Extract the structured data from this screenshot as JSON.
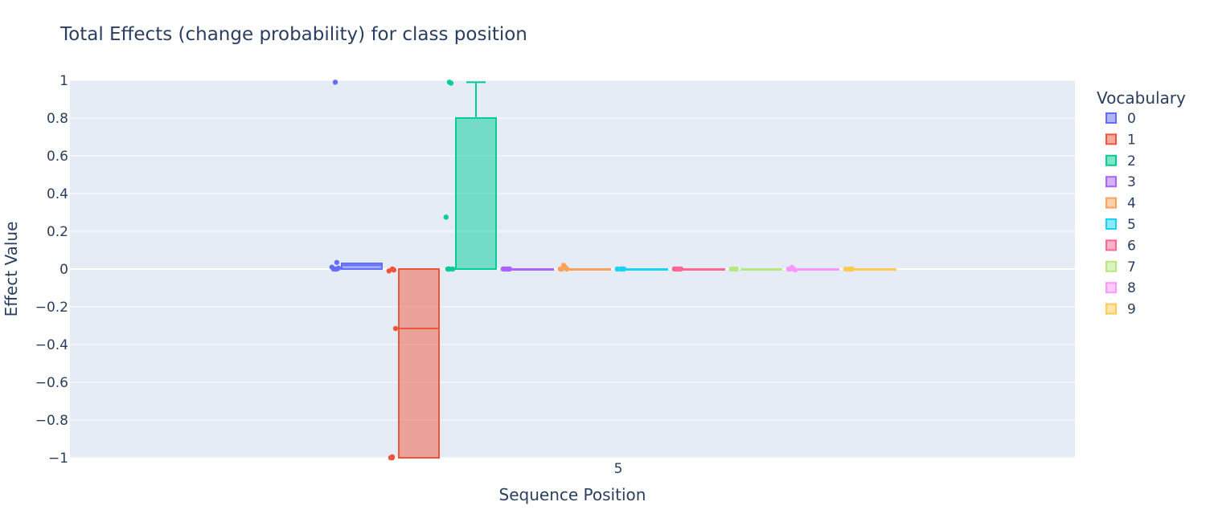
{
  "chart_data": {
    "type": "box",
    "title": "Total Effects (change probability) for class position",
    "xlabel": "Sequence Position",
    "ylabel": "Effect Value",
    "x_category": "5",
    "ylim": [
      -1,
      1
    ],
    "yticks": [
      -1,
      -0.8,
      -0.6,
      -0.4,
      -0.2,
      0,
      0.2,
      0.4,
      0.6,
      0.8,
      1
    ],
    "ytick_labels": [
      "−1",
      "−0.8",
      "−0.6",
      "−0.4",
      "−0.2",
      "0",
      "0.2",
      "0.4",
      "0.6",
      "0.8",
      "1"
    ],
    "grid": true,
    "legend_title": "Vocabulary",
    "legend_position": "right",
    "series": [
      {
        "name": "0",
        "color": "#636efa",
        "q1": 0,
        "median": 0.02,
        "q3": 0.03,
        "lowerfence": 0,
        "upperfence": 0.03,
        "points": [
          0.99,
          0.035,
          0.01,
          0.005,
          0,
          0,
          0,
          0
        ]
      },
      {
        "name": "1",
        "color": "#EF553B",
        "q1": -1,
        "median": -0.315,
        "q3": 0,
        "lowerfence": -1,
        "upperfence": 0,
        "points": [
          0,
          -0.005,
          -0.01,
          -0.315,
          -1,
          -0.995,
          -1
        ]
      },
      {
        "name": "2",
        "color": "#00cc96",
        "q1": 0,
        "median": 0,
        "q3": 0.8,
        "lowerfence": 0,
        "upperfence": 0.99,
        "points": [
          0.99,
          0.985,
          0.275,
          0,
          0,
          0,
          0
        ]
      },
      {
        "name": "3",
        "color": "#ab63fa",
        "q1": 0,
        "median": 0,
        "q3": 0,
        "lowerfence": 0,
        "upperfence": 0,
        "points": [
          0,
          0,
          0,
          0,
          0
        ]
      },
      {
        "name": "4",
        "color": "#FFA15A",
        "q1": 0,
        "median": 0,
        "q3": 0,
        "lowerfence": 0,
        "upperfence": 0,
        "points": [
          0.02,
          0.01,
          0,
          0,
          0
        ]
      },
      {
        "name": "5",
        "color": "#19d3f3",
        "q1": 0,
        "median": 0,
        "q3": 0,
        "lowerfence": 0,
        "upperfence": 0,
        "points": [
          0,
          0,
          0,
          0
        ]
      },
      {
        "name": "6",
        "color": "#FF6692",
        "q1": 0,
        "median": 0,
        "q3": 0,
        "lowerfence": 0,
        "upperfence": 0,
        "points": [
          0,
          0,
          0,
          0,
          0
        ]
      },
      {
        "name": "7",
        "color": "#B6E880",
        "q1": 0,
        "median": 0,
        "q3": 0,
        "lowerfence": 0,
        "upperfence": 0,
        "points": [
          0,
          0,
          0
        ]
      },
      {
        "name": "8",
        "color": "#FF97FF",
        "q1": 0,
        "median": 0,
        "q3": 0,
        "lowerfence": 0,
        "upperfence": 0,
        "points": [
          0.01,
          0,
          0,
          -0.005,
          0
        ]
      },
      {
        "name": "9",
        "color": "#FECB52",
        "q1": 0,
        "median": 0,
        "q3": 0,
        "lowerfence": 0,
        "upperfence": 0,
        "points": [
          0,
          0,
          0,
          0
        ]
      }
    ]
  }
}
